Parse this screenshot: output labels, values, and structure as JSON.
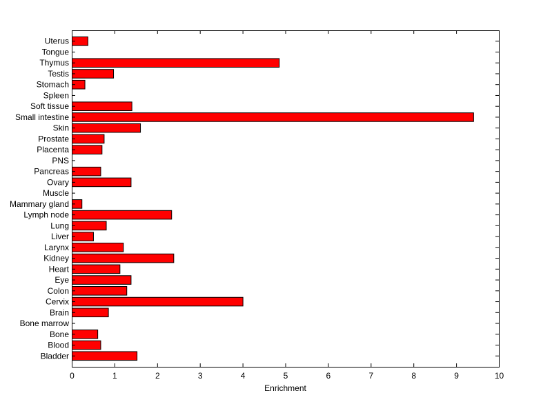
{
  "chart_data": {
    "type": "bar",
    "orientation": "horizontal",
    "title": "",
    "xlabel": "Enrichment",
    "ylabel": "",
    "xlim": [
      0,
      10
    ],
    "xticks": [
      0,
      1,
      2,
      3,
      4,
      5,
      6,
      7,
      8,
      9,
      10
    ],
    "grid": false,
    "bar_color": "#ff0000",
    "bar_edge_color": "#000000",
    "categories": [
      "Bladder",
      "Blood",
      "Bone",
      "Bone marrow",
      "Brain",
      "Cervix",
      "Colon",
      "Eye",
      "Heart",
      "Kidney",
      "Larynx",
      "Liver",
      "Lung",
      "Lymph node",
      "Mammary gland",
      "Muscle",
      "Ovary",
      "Pancreas",
      "PNS",
      "Placenta",
      "Prostate",
      "Skin",
      "Small intestine",
      "Soft tissue",
      "Spleen",
      "Stomach",
      "Testis",
      "Thymus",
      "Tongue",
      "Uterus"
    ],
    "values": [
      1.52,
      0.67,
      0.6,
      0,
      0.85,
      4.0,
      1.28,
      1.38,
      1.12,
      2.38,
      1.2,
      0.5,
      0.8,
      2.33,
      0.23,
      0,
      1.38,
      0.67,
      0,
      0.7,
      0.75,
      1.6,
      9.4,
      1.4,
      0,
      0.3,
      0.97,
      4.85,
      0,
      0.37
    ]
  }
}
